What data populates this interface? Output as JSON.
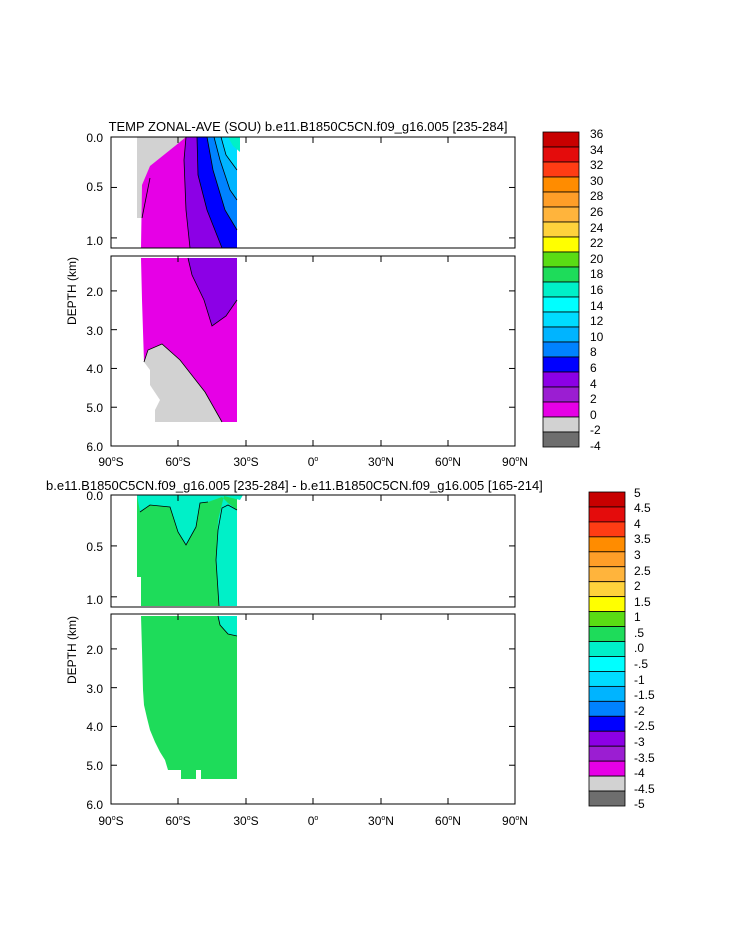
{
  "chart_data": [
    {
      "type": "heatmap",
      "title": "TEMP ZONAL-AVE (SOU) b.e11.B1850C5CN.f09_g16.005 [235-284]",
      "ylabel": "DEPTH (km)",
      "x_ticks": [
        {
          "deg": "90",
          "hemi": "S"
        },
        {
          "deg": "60",
          "hemi": "S"
        },
        {
          "deg": "30",
          "hemi": "S"
        },
        {
          "deg": "0",
          "hemi": ""
        },
        {
          "deg": "30",
          "hemi": "N"
        },
        {
          "deg": "60",
          "hemi": "N"
        },
        {
          "deg": "90",
          "hemi": "N"
        }
      ],
      "xlim": [
        -90,
        90
      ],
      "y_ticks_upper": [
        "0.0",
        "0.5",
        "1.0"
      ],
      "y_ticks_lower": [
        "2.0",
        "3.0",
        "4.0",
        "5.0",
        "6.0"
      ],
      "ylim_upper_km": [
        0,
        1.1
      ],
      "ylim_lower_km": [
        1.1,
        6.0
      ],
      "colorbar_labels": [
        "36",
        "34",
        "32",
        "30",
        "28",
        "26",
        "24",
        "22",
        "20",
        "18",
        "16",
        "14",
        "12",
        "10",
        "8",
        "6",
        "4",
        "2",
        "0",
        "-2",
        "-4"
      ],
      "colorbar_colors": [
        "#c80000",
        "#e40c0c",
        "#ff3c14",
        "#ff8c00",
        "#ff9e28",
        "#ffb43c",
        "#ffd23c",
        "#ffff00",
        "#5adc14",
        "#1edc5a",
        "#00f0c8",
        "#00ffff",
        "#00dcff",
        "#00b4ff",
        "#0082ff",
        "#0000ff",
        "#8c00e6",
        "#9b1ed2",
        "#e600e6",
        "#d2d2d2",
        "#6e6e6e"
      ]
    },
    {
      "type": "heatmap",
      "title": "b.e11.B1850C5CN.f09_g16.005 [235-284] - b.e11.B1850C5CN.f09_g16.005 [165-214]",
      "ylabel": "DEPTH (km)",
      "x_ticks": [
        {
          "deg": "90",
          "hemi": "S"
        },
        {
          "deg": "60",
          "hemi": "S"
        },
        {
          "deg": "30",
          "hemi": "S"
        },
        {
          "deg": "0",
          "hemi": ""
        },
        {
          "deg": "30",
          "hemi": "N"
        },
        {
          "deg": "60",
          "hemi": "N"
        },
        {
          "deg": "90",
          "hemi": "N"
        }
      ],
      "xlim": [
        -90,
        90
      ],
      "y_ticks_upper": [
        "0.0",
        "0.5",
        "1.0"
      ],
      "y_ticks_lower": [
        "2.0",
        "3.0",
        "4.0",
        "5.0",
        "6.0"
      ],
      "ylim_upper_km": [
        0,
        1.1
      ],
      "ylim_lower_km": [
        1.1,
        6.0
      ],
      "colorbar_labels": [
        "5",
        "4.5",
        "4",
        "3.5",
        "3",
        "2.5",
        "2",
        "1.5",
        "1",
        ".5",
        ".0",
        "-.5",
        "-1",
        "-1.5",
        "-2",
        "-2.5",
        "-3",
        "-3.5",
        "-4",
        "-4.5",
        "-5"
      ],
      "colorbar_colors": [
        "#c80000",
        "#e40c0c",
        "#ff3c14",
        "#ff8c00",
        "#ff9e28",
        "#ffb43c",
        "#ffd23c",
        "#ffff00",
        "#5adc14",
        "#1edc5a",
        "#00f0c8",
        "#00ffff",
        "#00dcff",
        "#00b4ff",
        "#0082ff",
        "#0000ff",
        "#8c00e6",
        "#9b1ed2",
        "#e600e6",
        "#d2d2d2",
        "#6e6e6e"
      ]
    }
  ]
}
